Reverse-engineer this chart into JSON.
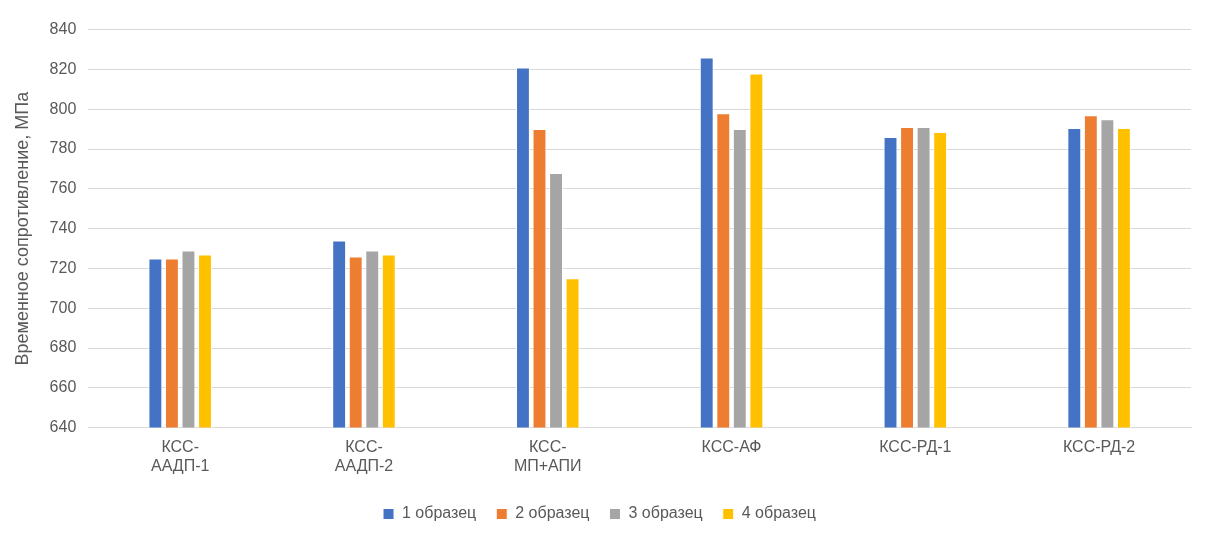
{
  "chart_data": {
    "type": "bar",
    "ylabel": "Временное сопротивление, МПа",
    "categories": [
      "КСС-ААДП-1",
      "КСС-ААДП-2",
      "КСС-МП+АПИ",
      "КСС-АФ",
      "КСС-РД-1",
      "КСС-РД-2"
    ],
    "series": [
      {
        "name": "1 образец",
        "color": "#4472c4",
        "values": [
          725,
          734,
          821,
          826,
          786,
          790.5
        ]
      },
      {
        "name": "2 образец",
        "color": "#ed7d31",
        "values": [
          725,
          726,
          790,
          798,
          791,
          797
        ]
      },
      {
        "name": "3 образец",
        "color": "#a5a5a5",
        "values": [
          729,
          729,
          768,
          790,
          791,
          795
        ]
      },
      {
        "name": "4 образец",
        "color": "#ffc000",
        "values": [
          727,
          727,
          715,
          818,
          788.5,
          790.5
        ]
      }
    ],
    "ylim": [
      640,
      840
    ],
    "yticks": [
      640,
      660,
      680,
      700,
      720,
      740,
      760,
      780,
      800,
      820,
      840
    ],
    "grid": "y",
    "legend": "bottom"
  }
}
